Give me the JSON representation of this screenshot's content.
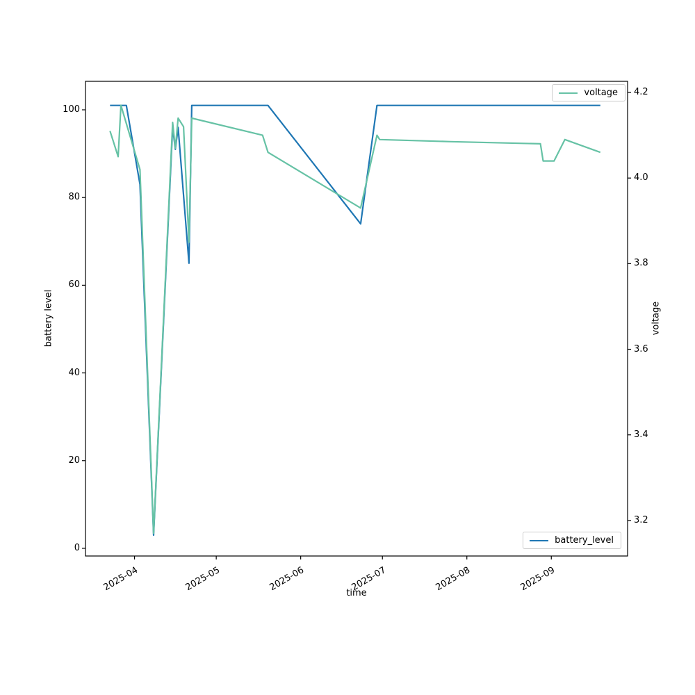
{
  "figure": {
    "background": "#ffffff"
  },
  "axes": {
    "x": {
      "label": "time",
      "ticks": [
        {
          "date": "2025-04-01",
          "label": "2025-04"
        },
        {
          "date": "2025-05-01",
          "label": "2025-05"
        },
        {
          "date": "2025-06-01",
          "label": "2025-06"
        },
        {
          "date": "2025-07-01",
          "label": "2025-07"
        },
        {
          "date": "2025-08-01",
          "label": "2025-08"
        },
        {
          "date": "2025-09-01",
          "label": "2025-09"
        }
      ],
      "tick_rotation_deg": 30
    },
    "y_left": {
      "label": "battery level",
      "ticks": [
        "0",
        "20",
        "40",
        "60",
        "80",
        "100"
      ]
    },
    "y_right": {
      "label": "voltage",
      "ticks": [
        "3.2",
        "3.4",
        "3.6",
        "3.8",
        "4.0",
        "4.2"
      ]
    }
  },
  "legends": {
    "voltage": {
      "label": "voltage",
      "position": "upper right"
    },
    "battery": {
      "label": "battery_level",
      "position": "lower right"
    }
  },
  "chart_data": {
    "type": "line",
    "xlabel": "time",
    "ylabel_left": "battery level",
    "ylabel_right": "voltage",
    "xlim": [
      "2025-03-14",
      "2025-09-29"
    ],
    "ylim_left": [
      -1.75,
      106.5
    ],
    "ylim_right": [
      3.117,
      4.226
    ],
    "grid": false,
    "series": [
      {
        "name": "battery_level",
        "axis": "left",
        "color": "#1f77b4",
        "x": [
          "2025-03-23",
          "2025-03-29",
          "2025-04-03",
          "2025-04-08",
          "2025-04-15",
          "2025-04-16",
          "2025-04-17",
          "2025-04-21",
          "2025-04-22",
          "2025-05-20",
          "2025-06-23",
          "2025-06-29",
          "2025-09-19"
        ],
        "values": [
          101,
          101,
          83,
          3,
          96,
          91,
          96,
          65,
          101,
          101,
          74,
          101,
          101
        ]
      },
      {
        "name": "voltage",
        "axis": "right",
        "color": "#66c2a5",
        "x": [
          "2025-03-23",
          "2025-03-26",
          "2025-03-27",
          "2025-04-03",
          "2025-04-08",
          "2025-04-15",
          "2025-04-16",
          "2025-04-17",
          "2025-04-19",
          "2025-04-21",
          "2025-04-22",
          "2025-05-18",
          "2025-05-20",
          "2025-06-23",
          "2025-06-29",
          "2025-06-30",
          "2025-07-26",
          "2025-08-28",
          "2025-08-29",
          "2025-09-02",
          "2025-09-06",
          "2025-09-19"
        ],
        "values": [
          4.11,
          4.05,
          4.17,
          4.02,
          3.17,
          4.13,
          4.07,
          4.14,
          4.12,
          3.85,
          4.14,
          4.1,
          4.06,
          3.93,
          4.1,
          4.09,
          4.085,
          4.08,
          4.04,
          4.04,
          4.09,
          4.06
        ]
      }
    ]
  }
}
